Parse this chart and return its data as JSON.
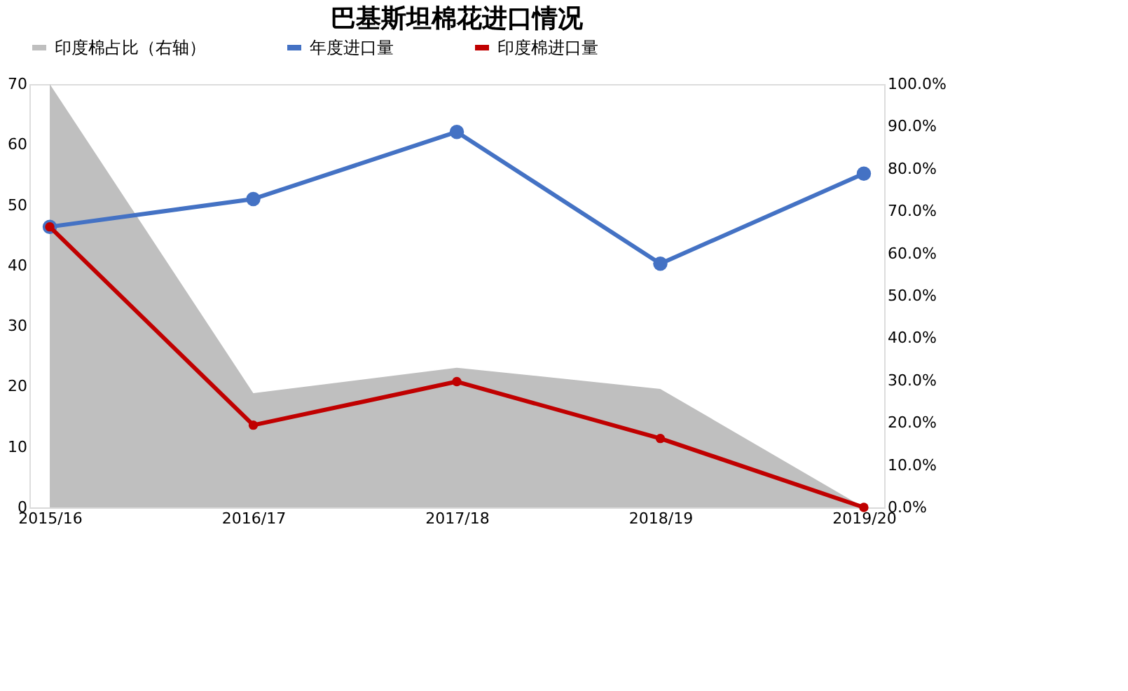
{
  "chart_data": {
    "type": "line",
    "title": "巴基斯坦棉花进口情况",
    "categories": [
      "2015/16",
      "2016/17",
      "2017/18",
      "2018/19",
      "2019/20"
    ],
    "series": [
      {
        "name": "印度棉占比（右轴）",
        "type": "area",
        "axis": "y2",
        "color": "#bfbfbf",
        "values": [
          100,
          27,
          33,
          28,
          0
        ]
      },
      {
        "name": "年度进口量",
        "color": "#4472c4",
        "marker": "circle",
        "values": [
          46.4,
          51.0,
          62.1,
          40.3,
          55.2
        ]
      },
      {
        "name": "印度棉进口量",
        "color": "#c00000",
        "marker": "circle",
        "values": [
          46.4,
          13.6,
          20.8,
          11.4,
          0
        ]
      }
    ],
    "ylim": [
      0,
      70
    ],
    "yticks": [
      0,
      10,
      20,
      30,
      40,
      50,
      60,
      70
    ],
    "y2lim": [
      0,
      100
    ],
    "y2ticks": [
      {
        "value": 0,
        "label": "0.0%"
      },
      {
        "value": 10,
        "label": "10.0%"
      },
      {
        "value": 20,
        "label": "20.0%"
      },
      {
        "value": 30,
        "label": "30.0%"
      },
      {
        "value": 40,
        "label": "40.0%"
      },
      {
        "value": 50,
        "label": "50.0%"
      },
      {
        "value": 60,
        "label": "60.0%"
      },
      {
        "value": 70,
        "label": "70.0%"
      },
      {
        "value": 80,
        "label": "80.0%"
      },
      {
        "value": 90,
        "label": "90.0%"
      },
      {
        "value": 100,
        "label": "100.0%"
      }
    ],
    "grid": false,
    "legend": "top"
  }
}
